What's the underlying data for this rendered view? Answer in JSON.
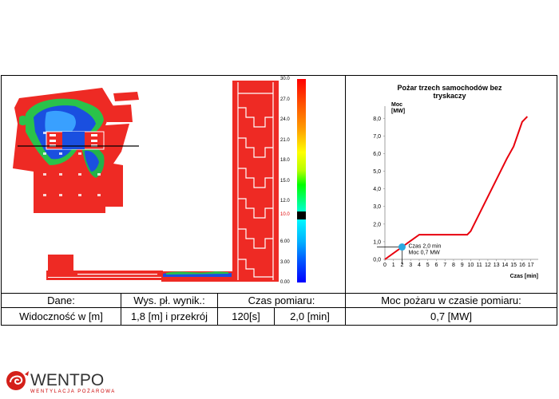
{
  "colorbar": {
    "ticks": [
      "30.0",
      "27.0",
      "24.0",
      "21.0",
      "18.0",
      "15.0",
      "12.0",
      "10.0",
      "6.00",
      "3.00",
      "0.00"
    ],
    "highlight_value": "10.0"
  },
  "chart_data": {
    "type": "line",
    "title": "Pożar trzech samochodów bez tryskaczy",
    "ylabel": "Moc [MW]",
    "xlabel": "Czas [min]",
    "x_ticks": [
      "0",
      "1",
      "2",
      "3",
      "4",
      "5",
      "6",
      "7",
      "8",
      "9",
      "10",
      "11",
      "12",
      "13",
      "14",
      "15",
      "16",
      "17"
    ],
    "y_ticks": [
      "0,0",
      "1,0",
      "2,0",
      "3,0",
      "4,0",
      "5,0",
      "6,0",
      "7,0",
      "8,0"
    ],
    "xlim": [
      0,
      17.5
    ],
    "ylim": [
      0,
      8.6
    ],
    "series": [
      {
        "color": "#e8000d",
        "x": [
          0,
          2,
          4,
          9.6,
          10,
          14.2,
          15,
          16,
          16.6
        ],
        "y": [
          0,
          0.7,
          1.4,
          1.4,
          1.6,
          5.7,
          6.4,
          7.8,
          8.1
        ]
      }
    ],
    "marker": {
      "x": 2.0,
      "y": 0.7,
      "color": "#2ba8e0",
      "label_line1": "Czas 2,0 min",
      "label_line2": "Moc 0,7 MW"
    }
  },
  "table": {
    "row1": {
      "dane": "Dane:",
      "wys": "Wys. pł. wynik.:",
      "czas": "Czas pomiaru:",
      "moc": "Moc pożaru w czasie pomiaru:"
    },
    "row2": {
      "dane": "Widoczność w [m]",
      "wys": "1,8 [m] i przekrój",
      "czas_s": "120[s]",
      "czas_min": "2,0 [min]",
      "moc": "0,7 [MW]"
    }
  },
  "logo": {
    "name": "WENTPO",
    "subtitle": "WENTYLACJA POŻAROWA",
    "icon": "wentpo-swirl-icon"
  },
  "colors": {
    "red": "#ee2a24",
    "blue": "#1a4fe0",
    "green": "#35c24a"
  }
}
